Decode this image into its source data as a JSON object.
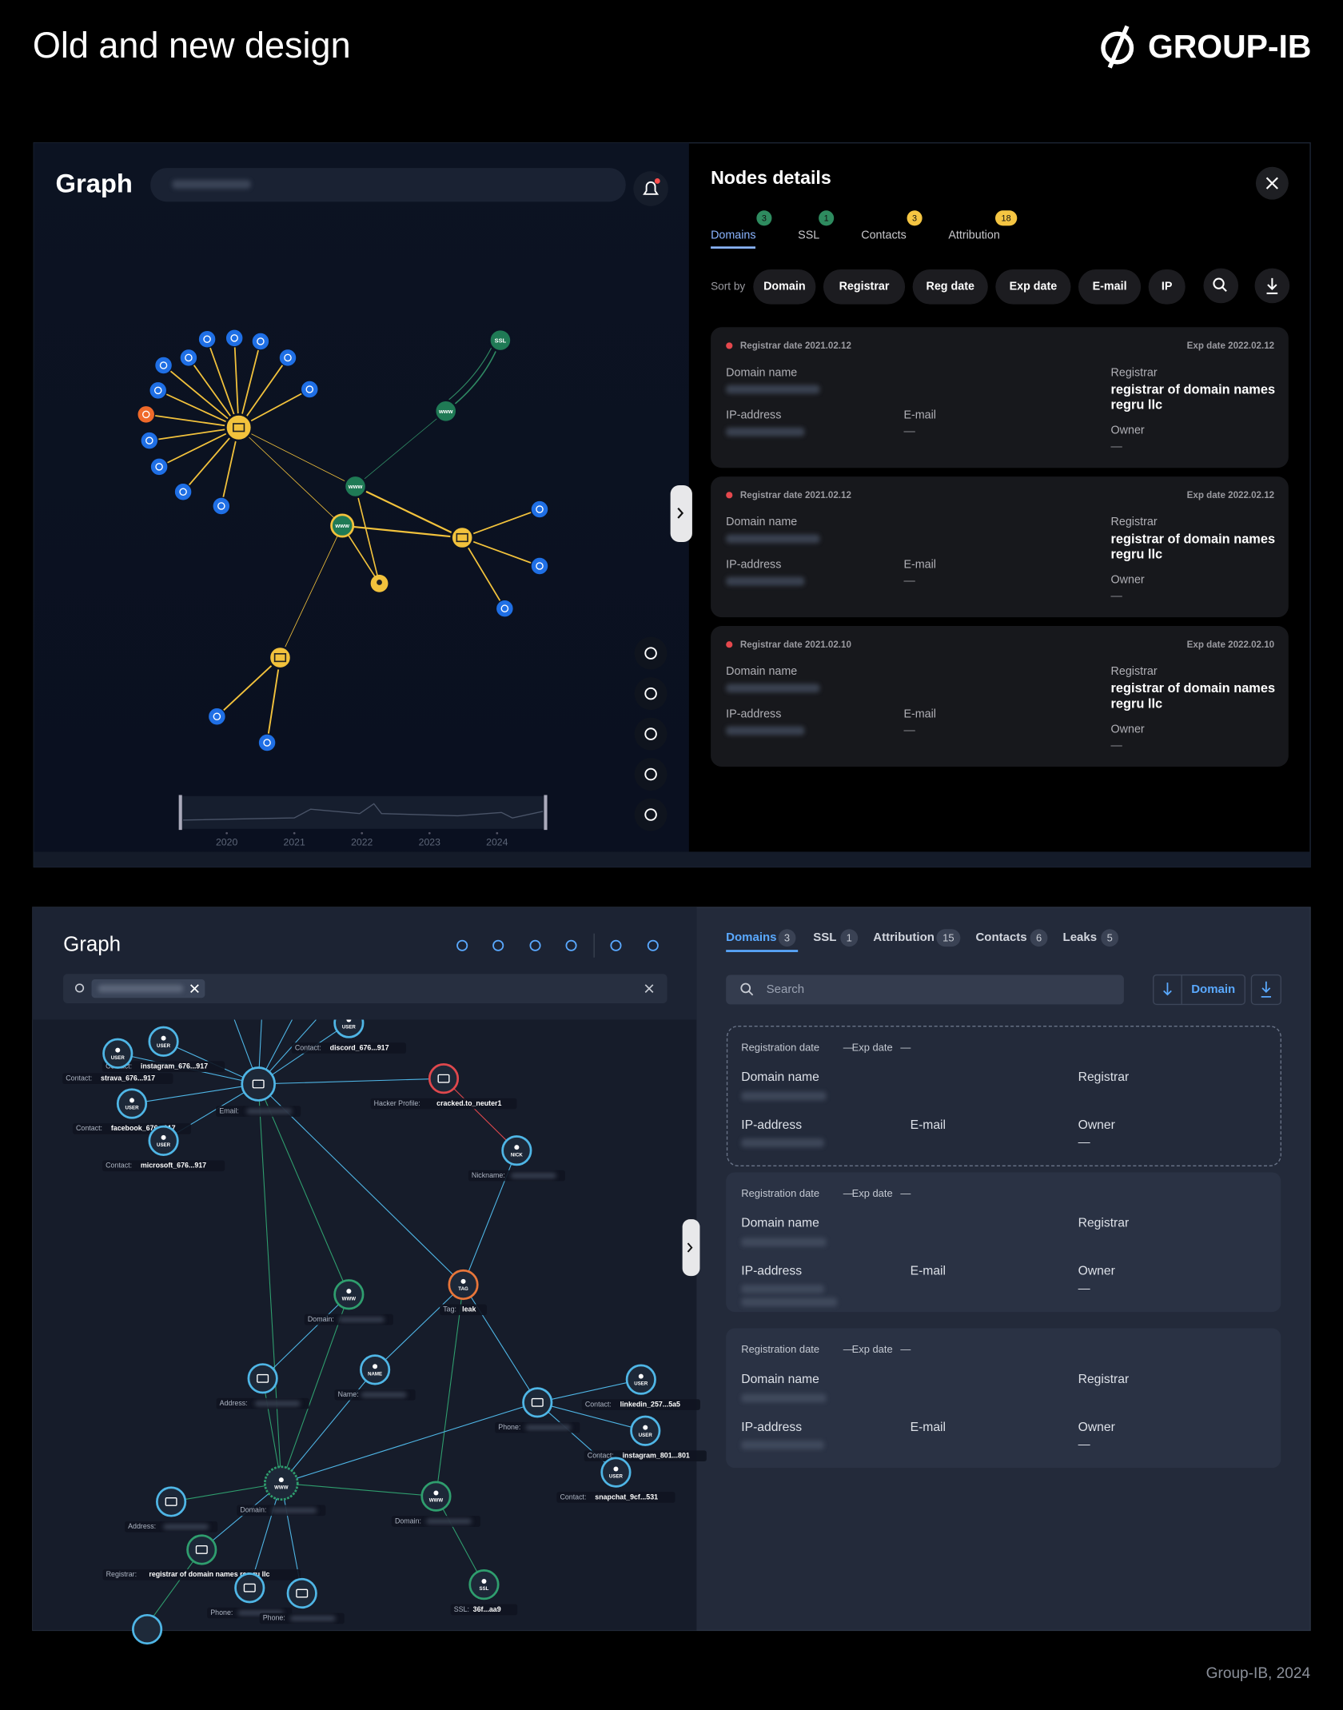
{
  "header": {
    "title": "Old and new design",
    "logo": "GROUP-IB"
  },
  "footer": "Group-IB, 2024",
  "old_design": {
    "graph_title": "Graph",
    "node_texts": [
      "SSL",
      "www"
    ],
    "timeline_years": [
      "2020",
      "2021",
      "2022",
      "2023",
      "2024"
    ],
    "details_title": "Nodes details",
    "tabs": [
      {
        "label": "Domains",
        "count": 3
      },
      {
        "label": "SSL",
        "count": 1
      },
      {
        "label": "Contacts",
        "count": 3
      },
      {
        "label": "Attribution",
        "count": 18
      }
    ],
    "sort_label": "Sort by",
    "sort_buttons": [
      "Domain",
      "Registrar",
      "Reg date",
      "Exp date",
      "E-mail",
      "IP"
    ],
    "cards": [
      {
        "registrar_date": "Registrar date 2021.02.12",
        "exp_date": "Exp date 2022.02.12",
        "domain_label": "Domain name",
        "ip_label": "IP-address",
        "email_label": "E-mail",
        "email_value": "—",
        "registrar_label": "Registrar",
        "registrar_value": "registrar of domain names regru llc",
        "owner_label": "Owner",
        "owner_value": "—"
      },
      {
        "registrar_date": "Registrar date 2021.02.12",
        "exp_date": "Exp date 2022.02.12",
        "domain_label": "Domain name",
        "ip_label": "IP-address",
        "email_label": "E-mail",
        "email_value": "—",
        "registrar_label": "Registrar",
        "registrar_value": "registrar of domain names regru llc",
        "owner_label": "Owner",
        "owner_value": "—"
      },
      {
        "registrar_date": "Registrar date 2021.02.10",
        "exp_date": "Exp date 2022.02.10",
        "domain_label": "Domain name",
        "ip_label": "IP-address",
        "email_label": "E-mail",
        "email_value": "—",
        "registrar_label": "Registrar",
        "registrar_value": "registrar of domain names regru llc",
        "owner_label": "Owner",
        "owner_value": "—"
      }
    ]
  },
  "new_design": {
    "graph_title": "Graph",
    "tabs": [
      {
        "label": "Domains",
        "count": 3
      },
      {
        "label": "SSL",
        "count": 1
      },
      {
        "label": "Attribution",
        "count": 15
      },
      {
        "label": "Contacts",
        "count": 6
      },
      {
        "label": "Leaks",
        "count": 5
      }
    ],
    "search_placeholder": "Search",
    "sort_button": "Domain",
    "cards": [
      {
        "reg_label": "Registration date",
        "reg_value": "—",
        "exp_label": "Exp date",
        "exp_value": "—",
        "domain_label": "Domain name",
        "registrar_label": "Registrar",
        "ip_label": "IP-address",
        "email_label": "E-mail",
        "owner_label": "Owner",
        "owner_value": "—"
      },
      {
        "reg_label": "Registration date",
        "reg_value": "—",
        "exp_label": "Exp date",
        "exp_value": "—",
        "domain_label": "Domain name",
        "registrar_label": "Registrar",
        "ip_label": "IP-address",
        "email_label": "E-mail",
        "owner_label": "Owner",
        "owner_value": "—"
      },
      {
        "reg_label": "Registration date",
        "reg_value": "—",
        "exp_label": "Exp date",
        "exp_value": "—",
        "domain_label": "Domain name",
        "registrar_label": "Registrar",
        "ip_label": "IP-address",
        "email_label": "E-mail",
        "owner_label": "Owner",
        "owner_value": "—"
      }
    ],
    "nodes": [
      {
        "icon": "USER",
        "label": "Contact:",
        "value": "instagram_676...917"
      },
      {
        "icon": "USER",
        "label": "Contact:",
        "value": "strava_676...917"
      },
      {
        "icon": "USER",
        "label": "Contact:",
        "value": "discord_676...917"
      },
      {
        "label": "Email:"
      },
      {
        "icon": "USER",
        "label": "Contact:",
        "value": "facebook_676...917"
      },
      {
        "icon": "USER",
        "label": "Contact:",
        "value": "microsoft_676...917"
      },
      {
        "label": "Hacker Profile:",
        "value": "cracked.to_neuter1"
      },
      {
        "icon": "NICK",
        "label": "Nickname:"
      },
      {
        "icon": "WWW",
        "label": "Domain:"
      },
      {
        "icon": "TAG",
        "label": "Tag:",
        "value": "leak"
      },
      {
        "label": "Address:"
      },
      {
        "icon": "NAME",
        "label": "Name:"
      },
      {
        "label": "Phone:"
      },
      {
        "icon": "USER",
        "label": "Contact:",
        "value": "linkedin_257...5a5"
      },
      {
        "icon": "USER",
        "label": "Contact:",
        "value": "instagram_801...801"
      },
      {
        "icon": "USER",
        "label": "Contact:",
        "value": "snapchat_9cf...531"
      },
      {
        "icon": "WWW",
        "label": "Domain:"
      },
      {
        "label": "Address:"
      },
      {
        "icon": "WWW",
        "label": "Domain:"
      },
      {
        "label": "Registrar:",
        "value": "registrar of domain names reg.ru llc"
      },
      {
        "label": "Phone:"
      },
      {
        "label": "Phone:"
      },
      {
        "icon": "SSL",
        "label": "SSL:",
        "value": "36f...aa9"
      }
    ]
  }
}
